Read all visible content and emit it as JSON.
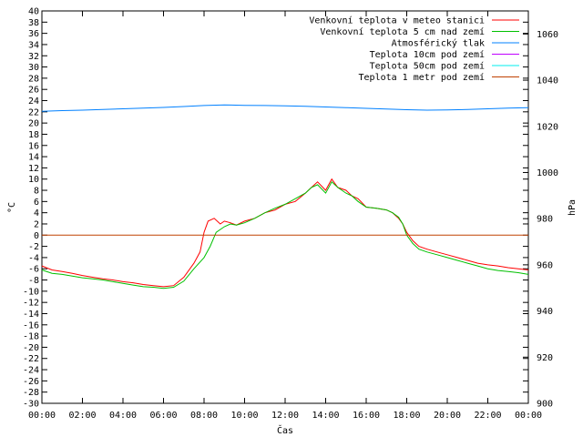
{
  "chart_data": {
    "type": "line",
    "xlabel": "Čas",
    "ylabel_left": "°C",
    "ylabel_right": "hPa",
    "x_ticks": [
      "00:00",
      "02:00",
      "04:00",
      "06:00",
      "08:00",
      "10:00",
      "12:00",
      "14:00",
      "16:00",
      "18:00",
      "20:00",
      "22:00",
      "00:00"
    ],
    "x_range_hours": [
      0,
      24
    ],
    "ylim_left": [
      -30,
      40
    ],
    "y_left_ticks": [
      40,
      38,
      36,
      34,
      32,
      30,
      28,
      26,
      24,
      22,
      20,
      18,
      16,
      14,
      12,
      10,
      8,
      6,
      4,
      2,
      0,
      -2,
      -4,
      -6,
      -8,
      -10,
      -12,
      -14,
      -16,
      -18,
      -20,
      -22,
      -24,
      -26,
      -28,
      -30
    ],
    "ylim_right": [
      900,
      1070
    ],
    "y_right_ticks": [
      1060,
      1040,
      1020,
      1000,
      980,
      960,
      940,
      920,
      900
    ],
    "grid": false,
    "legend_position": "top-right",
    "legend": [
      {
        "label": "Venkovní teplota v meteo stanici",
        "color": "#ff0000"
      },
      {
        "label": "Venkovní teplota 5 cm nad zemí",
        "color": "#00c000"
      },
      {
        "label": "Atmosférický tlak",
        "color": "#0080ff"
      },
      {
        "label": "Teplota 10cm pod zemí",
        "color": "#c000ff"
      },
      {
        "label": "Teplota 50cm pod zemí",
        "color": "#00eeee"
      },
      {
        "label": "Teplota 1 metr pod zemí",
        "color": "#c04000"
      }
    ],
    "series": [
      {
        "name": "Venkovní teplota v meteo stanici",
        "axis": "left",
        "color": "#ff0000",
        "x": [
          0,
          0.5,
          1,
          1.5,
          2,
          2.5,
          3,
          3.5,
          4,
          4.5,
          5,
          5.5,
          6,
          6.5,
          7,
          7.5,
          7.8,
          8,
          8.2,
          8.5,
          8.8,
          9,
          9.3,
          9.6,
          10,
          10.5,
          11,
          11.5,
          12,
          12.5,
          13,
          13.3,
          13.6,
          14,
          14.3,
          14.6,
          15,
          15.3,
          15.6,
          16,
          16.5,
          17,
          17.3,
          17.6,
          17.8,
          18,
          18.3,
          18.6,
          19,
          19.5,
          20,
          20.5,
          21,
          21.5,
          22,
          22.5,
          23,
          23.5,
          24
        ],
        "y": [
          -5.5,
          -6.2,
          -6.5,
          -6.8,
          -7.2,
          -7.5,
          -7.8,
          -8.0,
          -8.3,
          -8.5,
          -8.8,
          -9.0,
          -9.2,
          -9.0,
          -7.5,
          -5.0,
          -3.0,
          0.5,
          2.5,
          3.0,
          2.0,
          2.5,
          2.2,
          1.8,
          2.5,
          3.0,
          4.0,
          4.5,
          5.5,
          6.0,
          7.5,
          8.5,
          9.5,
          8.0,
          10.0,
          8.5,
          8.0,
          7.0,
          6.5,
          5.0,
          4.8,
          4.5,
          4.0,
          3.0,
          2.0,
          0.5,
          -1.0,
          -2.0,
          -2.5,
          -3.0,
          -3.5,
          -4.0,
          -4.5,
          -5.0,
          -5.3,
          -5.5,
          -5.8,
          -6.0,
          -6.2
        ]
      },
      {
        "name": "Venkovní teplota 5 cm nad zemí",
        "axis": "left",
        "color": "#00c000",
        "x": [
          0,
          0.5,
          1,
          1.5,
          2,
          2.5,
          3,
          3.5,
          4,
          4.5,
          5,
          5.5,
          6,
          6.5,
          7,
          7.5,
          8,
          8.3,
          8.6,
          9,
          9.3,
          9.6,
          10,
          10.5,
          11,
          11.5,
          12,
          12.5,
          13,
          13.3,
          13.6,
          14,
          14.3,
          14.6,
          15,
          15.3,
          15.6,
          16,
          16.5,
          17,
          17.3,
          17.6,
          17.8,
          18,
          18.3,
          18.6,
          19,
          19.5,
          20,
          20.5,
          21,
          21.5,
          22,
          22.5,
          23,
          23.5,
          24
        ],
        "y": [
          -6.2,
          -6.8,
          -7.0,
          -7.3,
          -7.6,
          -7.8,
          -8.0,
          -8.3,
          -8.6,
          -8.9,
          -9.2,
          -9.3,
          -9.5,
          -9.3,
          -8.2,
          -6.0,
          -4.0,
          -2.0,
          0.5,
          1.5,
          2.0,
          1.8,
          2.2,
          3.0,
          4.0,
          4.8,
          5.5,
          6.5,
          7.5,
          8.5,
          9.0,
          7.5,
          9.5,
          8.5,
          7.5,
          7.0,
          6.0,
          5.0,
          4.8,
          4.5,
          4.0,
          3.2,
          2.0,
          0.0,
          -1.5,
          -2.5,
          -3.0,
          -3.5,
          -4.0,
          -4.5,
          -5.0,
          -5.5,
          -6.0,
          -6.3,
          -6.5,
          -6.7,
          -7.0
        ]
      },
      {
        "name": "Atmosférický tlak",
        "axis": "right",
        "color": "#0080ff",
        "x": [
          0,
          1,
          2,
          3,
          4,
          5,
          6,
          7,
          8,
          9,
          10,
          11,
          12,
          13,
          14,
          15,
          16,
          17,
          18,
          19,
          20,
          21,
          22,
          23,
          24
        ],
        "y": [
          1026.5,
          1026.8,
          1027.0,
          1027.3,
          1027.6,
          1027.9,
          1028.2,
          1028.6,
          1029.0,
          1029.3,
          1029.1,
          1029.0,
          1028.9,
          1028.7,
          1028.4,
          1028.1,
          1027.8,
          1027.5,
          1027.2,
          1027.0,
          1027.1,
          1027.3,
          1027.6,
          1027.9,
          1028.1
        ]
      },
      {
        "name": "Teplota 1 metr pod zemí",
        "axis": "left",
        "color": "#c04000",
        "x": [
          0,
          24
        ],
        "y": [
          0,
          0
        ]
      }
    ]
  }
}
